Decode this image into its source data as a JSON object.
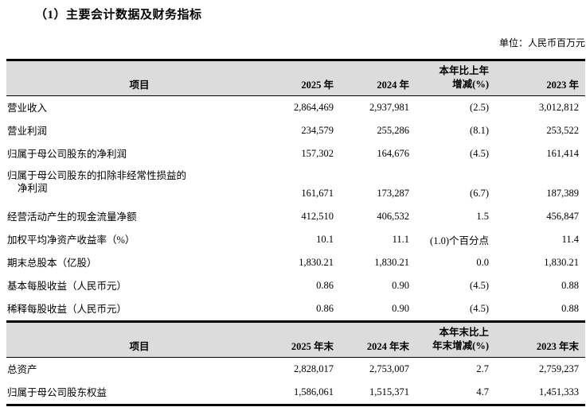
{
  "page": {
    "title": "（1）主要会计数据及财务指标",
    "unit_label": "单位：人民币百万元"
  },
  "colors": {
    "header_bg": "#dcdcdc",
    "border": "#000000"
  },
  "table1": {
    "header": {
      "item": "项目",
      "col_2025": "2025 年",
      "col_2024": "2024 年",
      "change_line1": "本年比上年",
      "change_line2": "增减(%)",
      "col_2023": "2023 年"
    },
    "rows": [
      {
        "label": "营业收入",
        "y2025": "2,864,469",
        "y2024": "2,937,981",
        "change": "(2.5)",
        "y2023": "3,012,812"
      },
      {
        "label": "营业利润",
        "y2025": "234,579",
        "y2024": "255,286",
        "change": "(8.1)",
        "y2023": "253,522"
      },
      {
        "label": "归属于母公司股东的净利润",
        "y2025": "157,302",
        "y2024": "164,676",
        "change": "(4.5)",
        "y2023": "161,414"
      },
      {
        "label": "归属于母公司股东的扣除非经常性损益的",
        "label2": "净利润",
        "y2025": "161,671",
        "y2024": "173,287",
        "change": "(6.7)",
        "y2023": "187,389"
      },
      {
        "label": "经营活动产生的现金流量净额",
        "y2025": "412,510",
        "y2024": "406,532",
        "change": "1.5",
        "y2023": "456,847"
      },
      {
        "label": "加权平均净资产收益率（%）",
        "y2025": "10.1",
        "y2024": "11.1",
        "change": "(1.0)个百分点",
        "y2023": "11.4"
      },
      {
        "label": "期末总股本（亿股）",
        "y2025": "1,830.21",
        "y2024": "1,830.21",
        "change": "0.0",
        "y2023": "1,830.21"
      },
      {
        "label": "基本每股收益（人民币元）",
        "y2025": "0.86",
        "y2024": "0.90",
        "change": "(4.5)",
        "y2023": "0.88"
      },
      {
        "label": "稀释每股收益（人民币元）",
        "y2025": "0.86",
        "y2024": "0.90",
        "change": "(4.5)",
        "y2023": "0.88"
      }
    ]
  },
  "table2": {
    "header": {
      "item": "项目",
      "col_2025": "2025 年末",
      "col_2024": "2024 年末",
      "change_line1": "本年末比上",
      "change_line2": "年末增减(%)",
      "col_2023": "2023 年末"
    },
    "rows": [
      {
        "label": "总资产",
        "y2025": "2,828,017",
        "y2024": "2,753,007",
        "change": "2.7",
        "y2023": "2,759,237"
      },
      {
        "label": "归属于母公司股东权益",
        "y2025": "1,586,061",
        "y2024": "1,515,371",
        "change": "4.7",
        "y2023": "1,451,333"
      }
    ]
  }
}
